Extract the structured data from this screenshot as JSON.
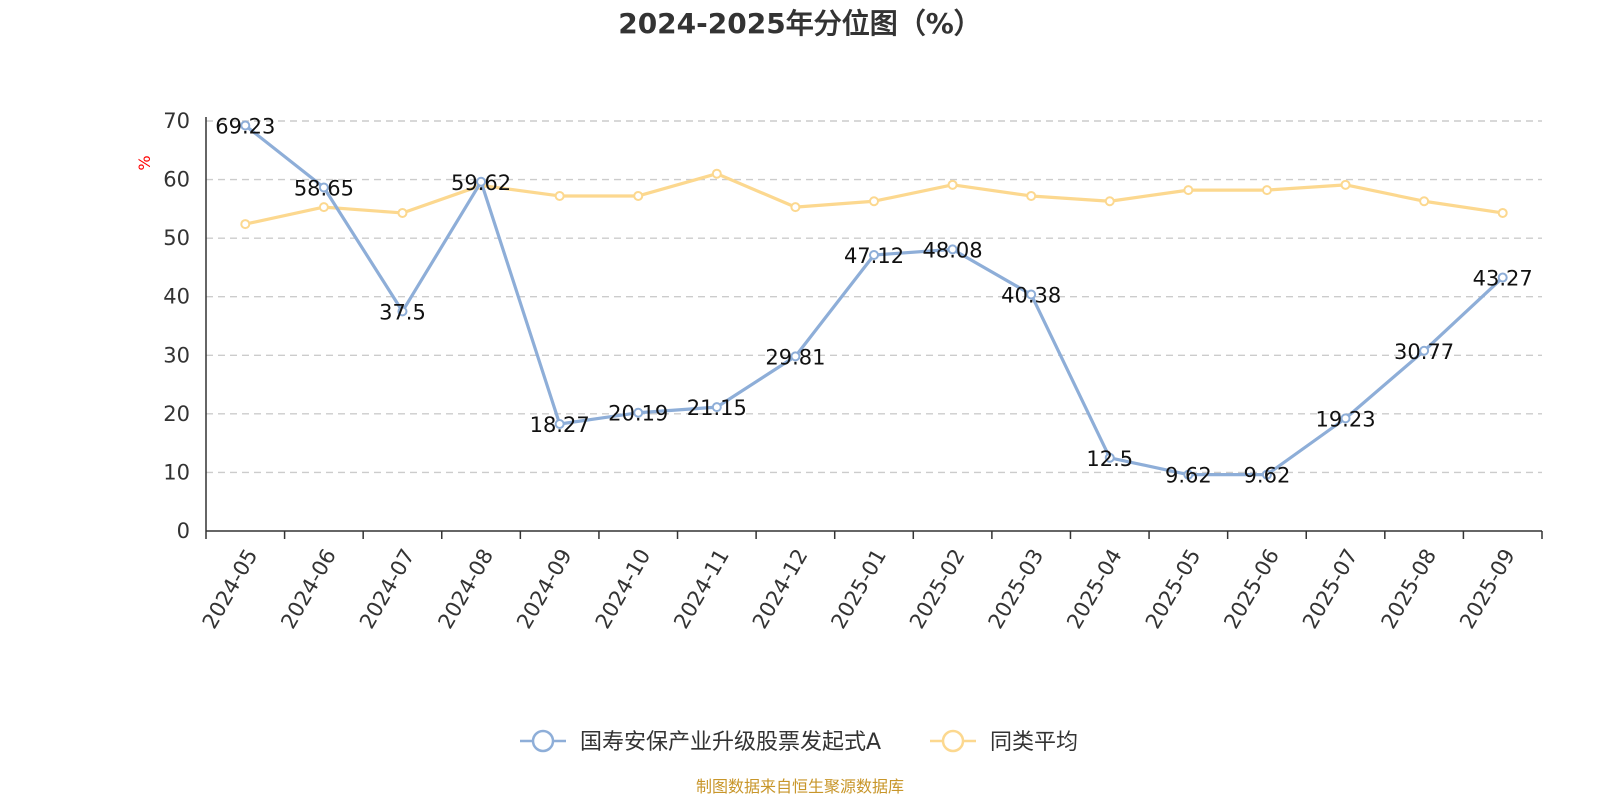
{
  "chart_data": {
    "type": "line",
    "title": "2024-2025年分位图（%）",
    "ylabel": "%",
    "xlabel": "",
    "ylim": [
      0,
      70
    ],
    "yticks": [
      0,
      10,
      20,
      30,
      40,
      50,
      60,
      70
    ],
    "grid": "horizontal dashed",
    "legend_position": "bottom",
    "categories": [
      "2024-05",
      "2024-06",
      "2024-07",
      "2024-08",
      "2024-09",
      "2024-10",
      "2024-11",
      "2024-12",
      "2025-01",
      "2025-02",
      "2025-03",
      "2025-04",
      "2025-05",
      "2025-06",
      "2025-07",
      "2025-08",
      "2025-09"
    ],
    "series": [
      {
        "name": "国寿安保产业升级股票发起式A",
        "color": "#8eaed8",
        "values": [
          69.23,
          58.65,
          37.5,
          59.62,
          18.27,
          20.19,
          21.15,
          29.81,
          47.12,
          48.08,
          40.38,
          12.5,
          9.62,
          9.62,
          19.23,
          30.77,
          43.27
        ],
        "labels": [
          "69.23",
          "58.65",
          "37.5",
          "59.62",
          "18.27",
          "20.19",
          "21.15",
          "29.81",
          "47.12",
          "48.08",
          "40.38",
          "12.5",
          "9.62",
          "9.62",
          "19.23",
          "30.77",
          "43.27"
        ],
        "show_labels": true
      },
      {
        "name": "同类平均",
        "color": "#fcd88f",
        "values": [
          52.4,
          55.3,
          54.3,
          59.0,
          57.2,
          57.2,
          61.0,
          55.3,
          56.3,
          59.1,
          57.2,
          56.3,
          58.2,
          58.2,
          59.1,
          56.3,
          54.3
        ],
        "show_labels": false
      }
    ],
    "source": "制图数据来自恒生聚源数据库"
  }
}
